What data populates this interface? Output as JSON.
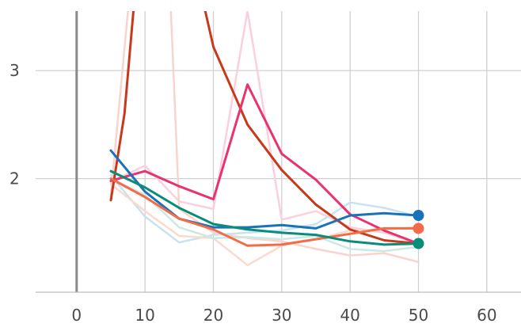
{
  "chart_data": {
    "type": "line",
    "title": "",
    "xlabel": "",
    "ylabel": "",
    "xlim": [
      -6,
      65
    ],
    "ylim": [
      0.95,
      3.55
    ],
    "x_ticks": [
      0,
      10,
      20,
      30,
      40,
      50,
      60
    ],
    "y_ticks": [
      2,
      3
    ],
    "x_tick_labels": [
      "0",
      "10",
      "20",
      "30",
      "40",
      "50",
      "60"
    ],
    "y_tick_labels": [
      "2",
      "3"
    ],
    "grid": true,
    "legend": "none",
    "colors": {
      "grid": "#d0d0d0",
      "zero_line": "#8a8a8a",
      "axis": "#bdbdbd"
    },
    "series": [
      {
        "color": "#fbd0dc",
        "width": 2.5,
        "x": [
          5,
          10,
          15,
          20,
          25,
          30,
          35,
          40,
          45,
          50
        ],
        "y": [
          1.97,
          2.12,
          1.79,
          1.72,
          3.55,
          1.62,
          1.7,
          1.55,
          1.5,
          1.4
        ]
      },
      {
        "color": "#f8d4cc",
        "width": 2.5,
        "x": [
          5,
          7.5,
          10,
          12.5,
          15,
          20,
          25,
          30,
          35,
          40,
          45,
          50
        ],
        "y": [
          1.85,
          3.55,
          5.5,
          5.5,
          1.72,
          1.5,
          1.45,
          1.42,
          1.35,
          1.29,
          1.31,
          1.23
        ]
      },
      {
        "color": "#c8e2ee",
        "width": 2.5,
        "x": [
          5,
          10,
          15,
          20,
          25,
          30,
          35,
          40,
          45,
          50
        ],
        "y": [
          2.03,
          1.65,
          1.41,
          1.48,
          1.5,
          1.52,
          1.58,
          1.78,
          1.73,
          1.65
        ]
      },
      {
        "color": "#fbd9cc",
        "width": 2.5,
        "x": [
          5,
          10,
          15,
          20,
          25,
          30,
          35,
          40,
          45,
          50
        ],
        "y": [
          1.95,
          1.7,
          1.47,
          1.45,
          1.2,
          1.38,
          1.44,
          1.52,
          1.53,
          1.55
        ]
      },
      {
        "color": "#cbe9e2",
        "width": 2.5,
        "x": [
          5,
          10,
          15,
          20,
          25,
          30,
          35,
          40,
          45,
          50
        ],
        "y": [
          2.0,
          1.85,
          1.55,
          1.45,
          1.46,
          1.44,
          1.47,
          1.35,
          1.33,
          1.37
        ]
      },
      {
        "color": "#c8391b",
        "width": 3,
        "x": [
          5,
          7,
          8.3,
          10,
          20,
          25,
          30,
          35,
          40,
          45,
          50
        ],
        "y": [
          1.8,
          2.6,
          3.55,
          6.0,
          3.22,
          2.5,
          2.08,
          1.76,
          1.53,
          1.43,
          1.4
        ]
      },
      {
        "color": "#e8336f",
        "width": 3,
        "x": [
          5,
          10,
          15,
          20,
          25,
          30,
          35,
          40,
          45,
          50
        ],
        "y": [
          1.98,
          2.07,
          1.93,
          1.81,
          2.87,
          2.23,
          1.99,
          1.67,
          1.52,
          1.4
        ]
      },
      {
        "color": "#1a72bb",
        "width": 3,
        "x": [
          5,
          10,
          15,
          20,
          25,
          30,
          35,
          40,
          45,
          50
        ],
        "y": [
          2.26,
          1.88,
          1.63,
          1.55,
          1.55,
          1.57,
          1.54,
          1.66,
          1.68,
          1.66
        ]
      },
      {
        "color": "#f36c47",
        "width": 3,
        "x": [
          5,
          10,
          15,
          20,
          25,
          30,
          35,
          40,
          45,
          50
        ],
        "y": [
          2.0,
          1.83,
          1.63,
          1.53,
          1.38,
          1.39,
          1.44,
          1.49,
          1.54,
          1.54
        ]
      },
      {
        "color": "#0a8c7a",
        "width": 3,
        "x": [
          5,
          10,
          15,
          20,
          25,
          30,
          35,
          40,
          45,
          50
        ],
        "y": [
          2.07,
          1.92,
          1.73,
          1.58,
          1.53,
          1.5,
          1.48,
          1.42,
          1.39,
          1.4
        ]
      }
    ],
    "endpoint_markers": [
      {
        "x": 50,
        "y": 1.66,
        "color": "#1a72bb"
      },
      {
        "x": 50,
        "y": 1.54,
        "color": "#f36c47"
      },
      {
        "x": 50,
        "y": 1.4,
        "color": "#0a8c7a"
      }
    ]
  }
}
